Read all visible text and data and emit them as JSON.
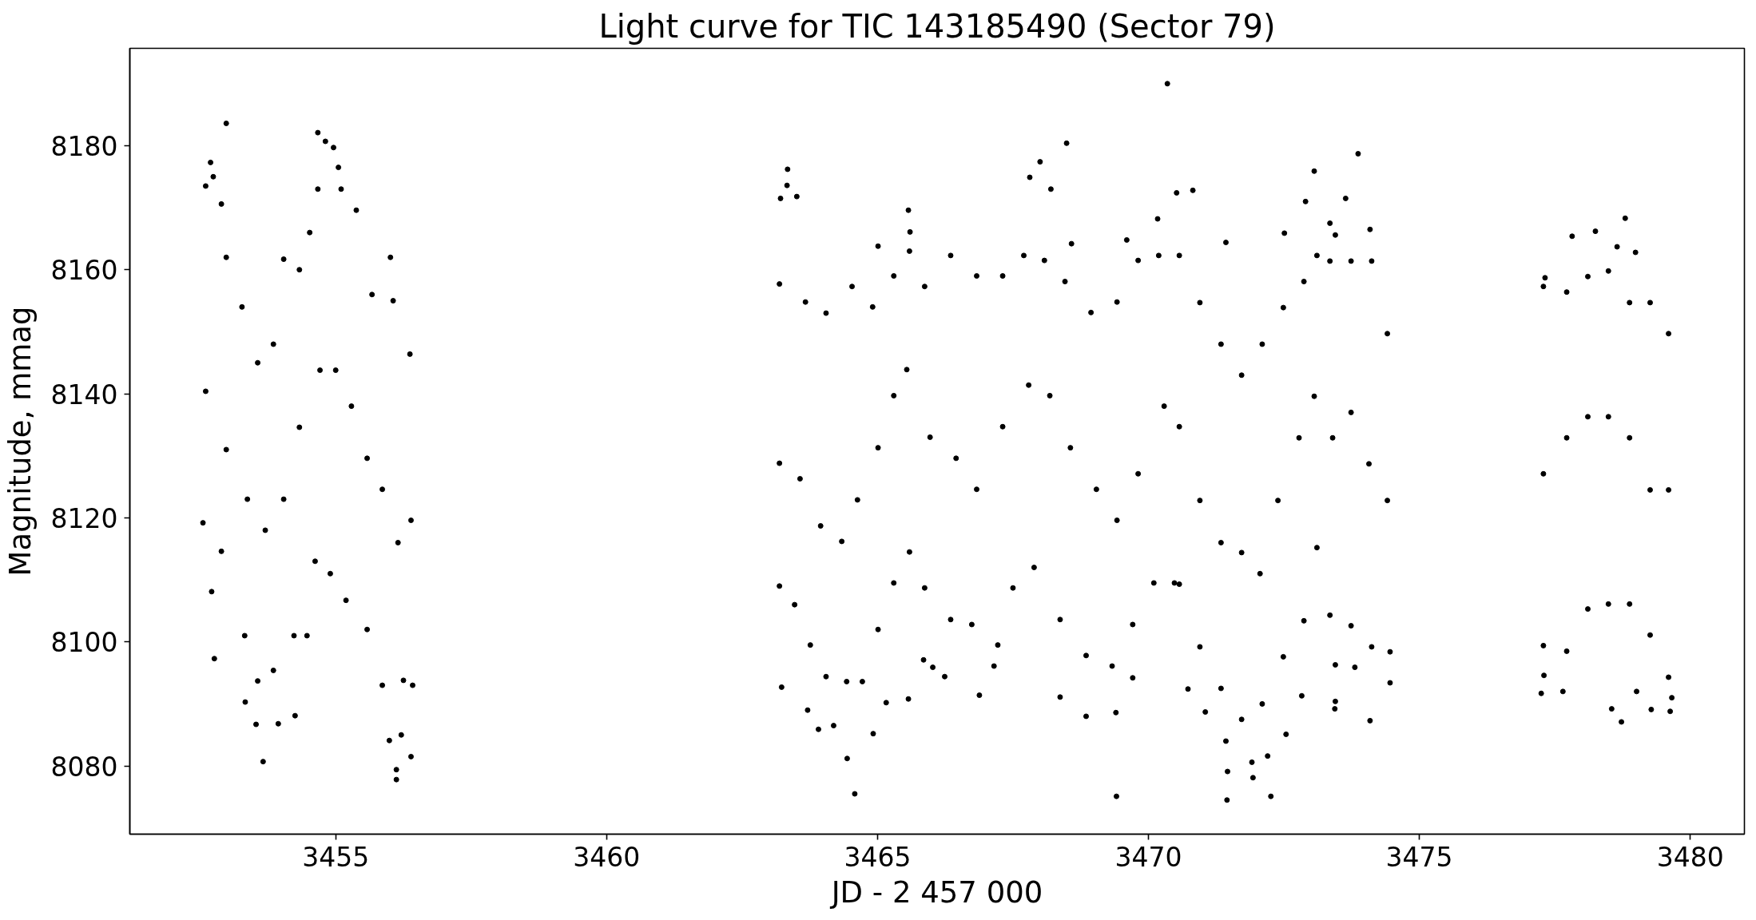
{
  "chart_data": {
    "type": "scatter",
    "title": "Light curve for TIC 143185490 (Sector 79)",
    "xlabel": "JD - 2 457 000",
    "ylabel": "Magnitude, mmag",
    "xlim": [
      3451.2,
      3481.0
    ],
    "ylim": [
      8069.0,
      8195.7
    ],
    "xticks": [
      3455,
      3460,
      3465,
      3470,
      3475,
      3480
    ],
    "yticks": [
      8080,
      8100,
      8120,
      8140,
      8160,
      8180
    ],
    "grid": false,
    "marker": "circle",
    "color": "#000000",
    "x": [
      3452.55,
      3452.6,
      3452.6,
      3452.69,
      3452.71,
      3452.74,
      3452.76,
      3452.89,
      3452.89,
      3452.98,
      3452.98,
      3452.98,
      3453.27,
      3453.32,
      3453.33,
      3453.37,
      3453.53,
      3453.56,
      3453.56,
      3453.66,
      3453.7,
      3453.85,
      3453.85,
      3453.94,
      3454.04,
      3454.04,
      3454.23,
      3454.25,
      3454.33,
      3454.33,
      3454.47,
      3454.52,
      3454.62,
      3454.67,
      3454.67,
      3454.71,
      3454.81,
      3454.9,
      3454.96,
      3455.0,
      3455.05,
      3455.1,
      3455.19,
      3455.29,
      3455.38,
      3455.58,
      3455.58,
      3455.67,
      3455.86,
      3455.86,
      3455.99,
      3456.01,
      3456.06,
      3456.12,
      3456.12,
      3456.15,
      3456.21,
      3456.25,
      3456.37,
      3456.39,
      3456.39,
      3456.42,
      3463.19,
      3463.19,
      3463.19,
      3463.21,
      3463.23,
      3463.33,
      3463.34,
      3463.47,
      3463.51,
      3463.57,
      3463.67,
      3463.71,
      3463.76,
      3463.91,
      3463.95,
      3464.05,
      3464.05,
      3464.19,
      3464.34,
      3464.43,
      3464.44,
      3464.53,
      3464.58,
      3464.63,
      3464.72,
      3464.91,
      3464.92,
      3465.01,
      3465.01,
      3465.01,
      3465.16,
      3465.3,
      3465.3,
      3465.3,
      3465.54,
      3465.57,
      3465.57,
      3465.59,
      3465.59,
      3465.6,
      3465.85,
      3465.87,
      3465.87,
      3465.97,
      3466.02,
      3466.24,
      3466.35,
      3466.35,
      3466.45,
      3466.74,
      3466.83,
      3466.83,
      3466.88,
      3467.15,
      3467.22,
      3467.31,
      3467.31,
      3467.5,
      3467.7,
      3467.79,
      3467.81,
      3467.89,
      3468.0,
      3468.08,
      3468.18,
      3468.2,
      3468.37,
      3468.37,
      3468.46,
      3468.49,
      3468.56,
      3468.58,
      3468.85,
      3468.85,
      3468.94,
      3469.04,
      3469.33,
      3469.4,
      3469.41,
      3469.42,
      3469.42,
      3469.6,
      3469.71,
      3469.71,
      3469.81,
      3469.81,
      3470.1,
      3470.17,
      3470.19,
      3470.29,
      3470.35,
      3470.48,
      3470.52,
      3470.57,
      3470.57,
      3470.57,
      3470.73,
      3470.82,
      3470.95,
      3470.95,
      3470.95,
      3471.05,
      3471.34,
      3471.34,
      3471.34,
      3471.43,
      3471.43,
      3471.45,
      3471.46,
      3471.72,
      3471.72,
      3471.72,
      3471.91,
      3471.93,
      3472.06,
      3472.1,
      3472.1,
      3472.2,
      3472.26,
      3472.39,
      3472.49,
      3472.49,
      3472.51,
      3472.54,
      3472.78,
      3472.83,
      3472.87,
      3472.87,
      3472.9,
      3473.06,
      3473.06,
      3473.11,
      3473.11,
      3473.35,
      3473.35,
      3473.35,
      3473.4,
      3473.44,
      3473.45,
      3473.45,
      3473.45,
      3473.64,
      3473.74,
      3473.74,
      3473.74,
      3473.81,
      3473.87,
      3474.07,
      3474.09,
      3474.09,
      3474.12,
      3474.12,
      3474.41,
      3474.41,
      3474.46,
      3474.46,
      3477.25,
      3477.29,
      3477.29,
      3477.29,
      3477.3,
      3477.32,
      3477.65,
      3477.72,
      3477.72,
      3477.72,
      3477.82,
      3478.11,
      3478.11,
      3478.11,
      3478.25,
      3478.49,
      3478.49,
      3478.49,
      3478.55,
      3478.65,
      3478.73,
      3478.8,
      3478.88,
      3478.88,
      3478.88,
      3478.99,
      3479.01,
      3479.26,
      3479.26,
      3479.26,
      3479.28,
      3479.6,
      3479.6,
      3479.6,
      3479.63,
      3479.66
    ],
    "values": [
      8119.2,
      8173.5,
      8140.4,
      8177.3,
      8108.1,
      8175.0,
      8097.3,
      8170.6,
      8114.6,
      8183.6,
      8162.0,
      8131.0,
      8154.0,
      8101.0,
      8090.3,
      8123.0,
      8086.7,
      8145.0,
      8093.7,
      8080.7,
      8118.0,
      8148.0,
      8095.4,
      8086.8,
      8161.7,
      8123.0,
      8101.0,
      8088.1,
      8160.0,
      8134.6,
      8101.0,
      8166.0,
      8113.0,
      8182.1,
      8173.0,
      8143.8,
      8180.7,
      8111.0,
      8179.7,
      8143.8,
      8176.5,
      8173.0,
      8106.7,
      8138.0,
      8169.6,
      8129.6,
      8102.0,
      8156.0,
      8124.6,
      8093.0,
      8084.1,
      8162.0,
      8155.0,
      8077.8,
      8079.4,
      8116.0,
      8085.0,
      8093.8,
      8146.4,
      8119.6,
      8081.5,
      8093.0,
      8157.7,
      8128.8,
      8109.0,
      8171.5,
      8092.7,
      8173.6,
      8176.2,
      8106.0,
      8171.8,
      8126.3,
      8154.8,
      8089.0,
      8099.5,
      8085.9,
      8118.7,
      8153.0,
      8094.4,
      8086.5,
      8116.2,
      8093.6,
      8081.2,
      8157.3,
      8075.5,
      8122.9,
      8093.6,
      8154.0,
      8085.2,
      8163.8,
      8131.3,
      8102.0,
      8090.2,
      8159.0,
      8139.7,
      8109.5,
      8143.9,
      8169.6,
      8090.8,
      8163.0,
      8114.5,
      8166.1,
      8097.1,
      8157.3,
      8108.7,
      8133.0,
      8095.9,
      8094.4,
      8162.3,
      8103.6,
      8129.6,
      8102.8,
      8159.0,
      8124.6,
      8091.4,
      8096.1,
      8099.5,
      8159.0,
      8134.7,
      8108.7,
      8162.3,
      8141.4,
      8174.9,
      8112.0,
      8177.4,
      8161.5,
      8139.7,
      8173.0,
      8103.6,
      8091.1,
      8158.1,
      8180.4,
      8131.3,
      8164.2,
      8097.8,
      8088.0,
      8153.1,
      8124.6,
      8096.1,
      8088.6,
      8075.1,
      8154.8,
      8119.6,
      8164.8,
      8102.8,
      8094.2,
      8161.5,
      8127.1,
      8109.5,
      8168.2,
      8162.3,
      8138.0,
      8190.0,
      8109.5,
      8172.4,
      8162.3,
      8134.7,
      8109.3,
      8092.4,
      8172.8,
      8154.7,
      8122.8,
      8099.2,
      8088.7,
      8148.0,
      8116.0,
      8092.5,
      8164.4,
      8084.0,
      8074.5,
      8079.1,
      8143.0,
      8114.4,
      8087.5,
      8080.6,
      8078.1,
      8111.0,
      8148.0,
      8090.0,
      8081.6,
      8075.1,
      8122.8,
      8153.9,
      8097.6,
      8165.9,
      8085.1,
      8132.9,
      8091.3,
      8158.1,
      8103.4,
      8171.0,
      8175.9,
      8139.6,
      8162.3,
      8115.2,
      8167.5,
      8161.4,
      8104.3,
      8132.9,
      8089.2,
      8165.6,
      8090.4,
      8096.3,
      8171.5,
      8161.4,
      8137.0,
      8102.6,
      8095.9,
      8178.7,
      8128.7,
      8166.5,
      8087.3,
      8161.4,
      8099.2,
      8149.7,
      8122.8,
      8098.4,
      8093.4,
      8091.7,
      8157.3,
      8127.1,
      8099.4,
      8094.6,
      8158.7,
      8092.0,
      8156.4,
      8132.9,
      8098.5,
      8165.4,
      8158.9,
      8136.3,
      8105.3,
      8166.2,
      8159.8,
      8136.3,
      8106.1,
      8089.2,
      8163.7,
      8087.1,
      8168.3,
      8154.7,
      8132.9,
      8106.1,
      8162.8,
      8092.0,
      8154.7,
      8124.5,
      8101.1,
      8089.1,
      8149.7,
      8124.5,
      8094.3,
      8088.8,
      8091.0
    ]
  }
}
